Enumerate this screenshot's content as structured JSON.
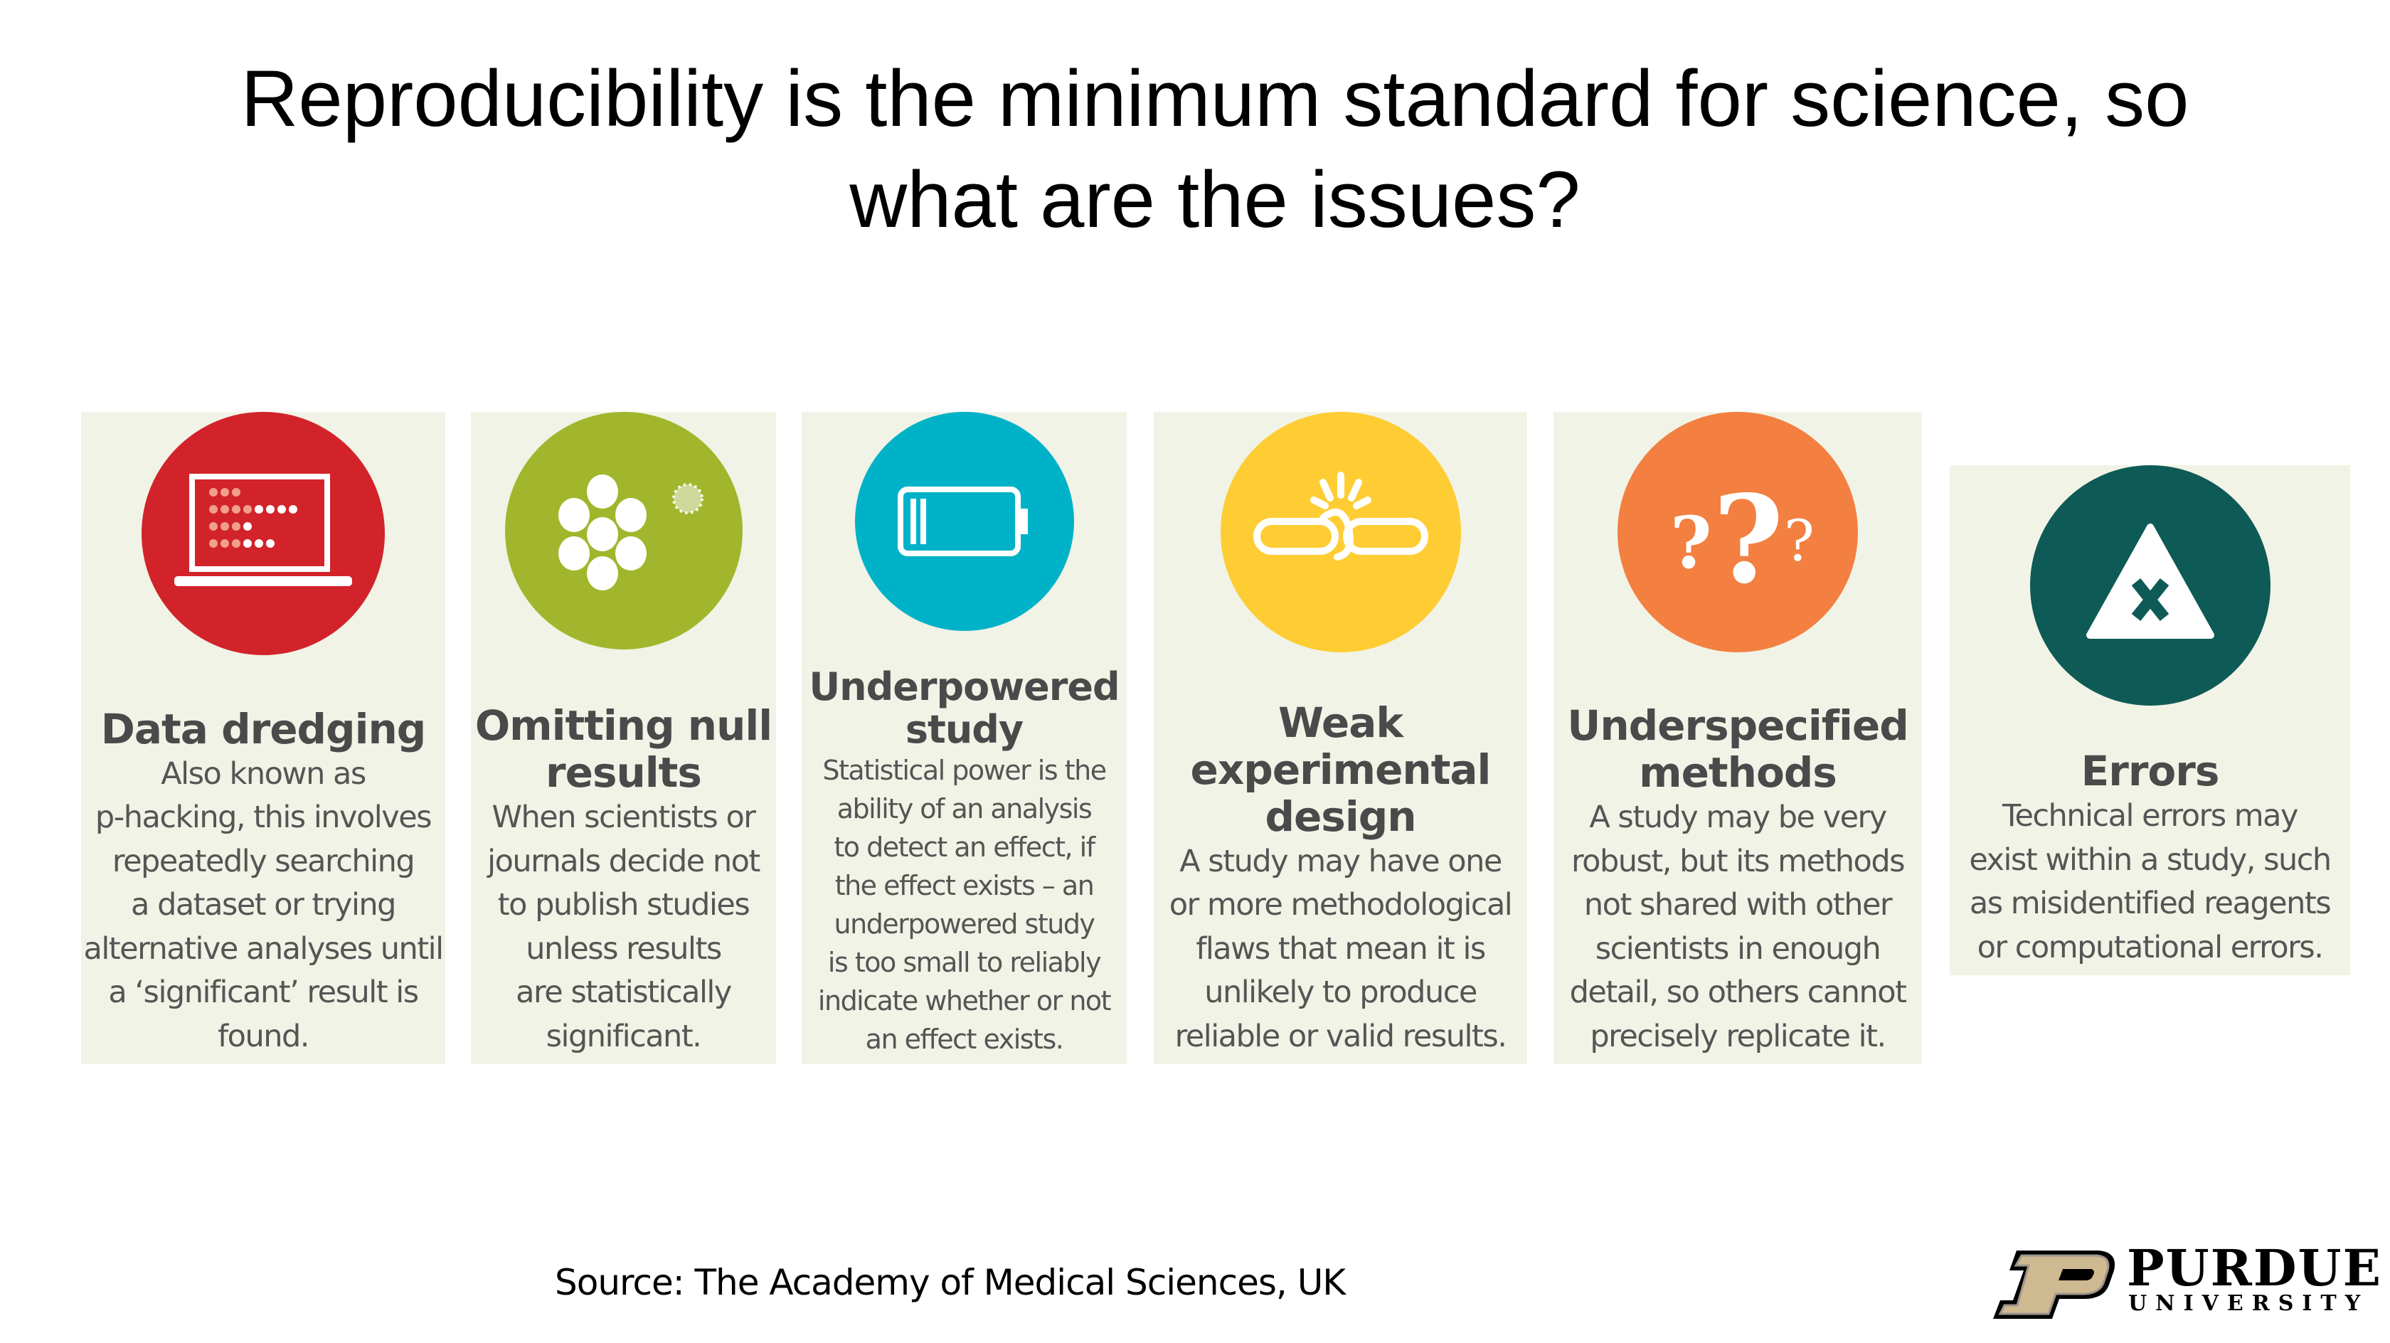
{
  "title": {
    "line1": "Reproducibility is the minimum standard for science, so",
    "line2": "what are the issues?"
  },
  "colors": {
    "panel_bg": "#f1f3e6",
    "red": "#d2232a",
    "green": "#a1b62c",
    "cyan": "#00b2c8",
    "yellow": "#fecd33",
    "orange": "#f37f40",
    "teal": "#0e5a56"
  },
  "panels": [
    {
      "heading": "Data dredging",
      "body": "Also known as\np-hacking, this involves\nrepeatedly searching\na dataset or trying\nalternative analyses until\na ‘significant’ result is\nfound.",
      "icon": "laptop-data-icon"
    },
    {
      "heading": "Omitting null\nresults",
      "body": "When scientists or\njournals decide not\nto publish studies\nunless results\nare statistically\nsignificant.",
      "icon": "circles-cluster-icon"
    },
    {
      "heading": "Underpowered\nstudy",
      "body": "Statistical power is the\nability of an analysis\nto detect an effect, if\nthe effect exists – an\nunderpowered study\nis too small to reliably\nindicate whether or not\nan effect exists.",
      "icon": "low-battery-icon"
    },
    {
      "heading": "Weak\nexperimental\ndesign",
      "body": "A study may have one\nor more methodological\nflaws that mean it is\nunlikely to produce\nreliable or valid results.",
      "icon": "broken-chain-icon"
    },
    {
      "heading": "Underspecified\nmethods",
      "body": "A study may be very\nrobust, but its methods\nnot shared with other\nscientists in enough\ndetail, so others cannot\nprecisely replicate it.",
      "icon": "question-marks-icon"
    },
    {
      "heading": "Errors",
      "body": "Technical errors may\nexist within a study, such\nas misidentified reagents\nor computational errors.",
      "icon": "warning-x-icon"
    }
  ],
  "source": "Source: The Academy of Medical Sciences, UK",
  "logo": {
    "name": "PURDUE",
    "sub": "UNIVERSITY"
  }
}
